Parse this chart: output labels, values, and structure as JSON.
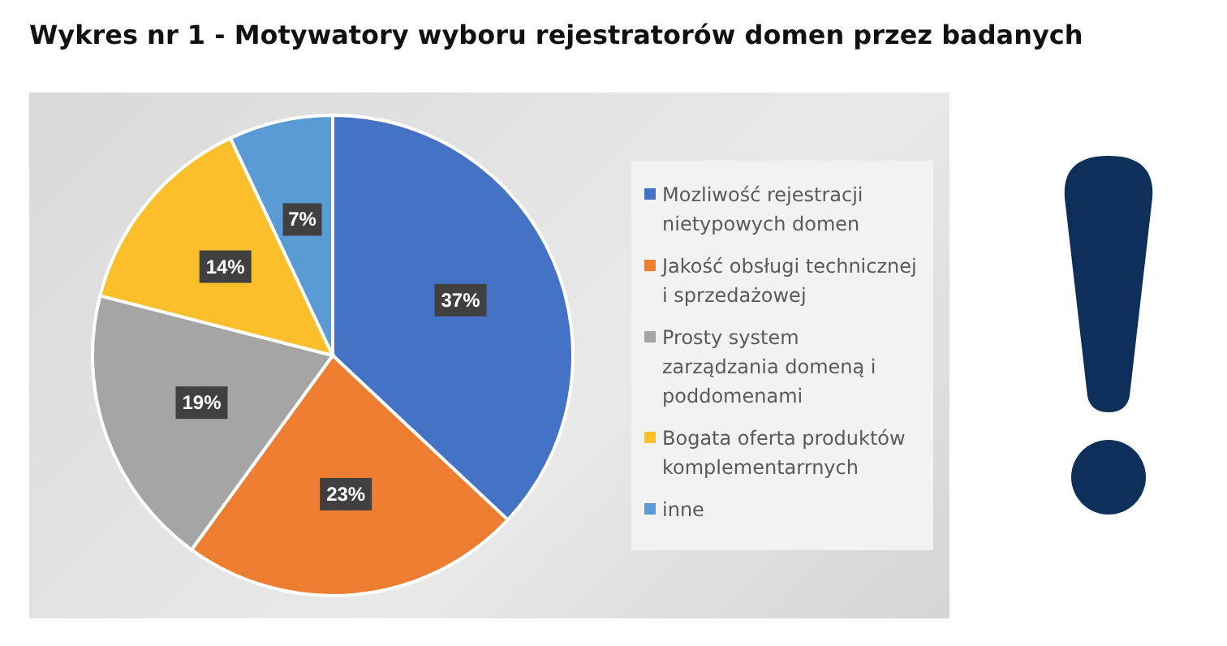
{
  "chart_data": {
    "type": "pie",
    "title": "Wykres nr 1 - Motywatory wyboru rejestratorów domen przez badanych",
    "categories": [
      "Mozliwość rejestracji nietypowych domen",
      "Jakość obsługi technicznej i sprzedażowej",
      "Prosty system zarządzania domeną i poddomenami",
      "Bogata oferta produktów komplementarrnych",
      "inne"
    ],
    "values": [
      37,
      23,
      19,
      14,
      7
    ],
    "value_labels": [
      "37%",
      "23%",
      "19%",
      "14%",
      "7%"
    ],
    "colors": [
      "#4472c4",
      "#ed7d31",
      "#a5a5a5",
      "#fbbf2c",
      "#5b9bd5"
    ],
    "legend": "right"
  }
}
